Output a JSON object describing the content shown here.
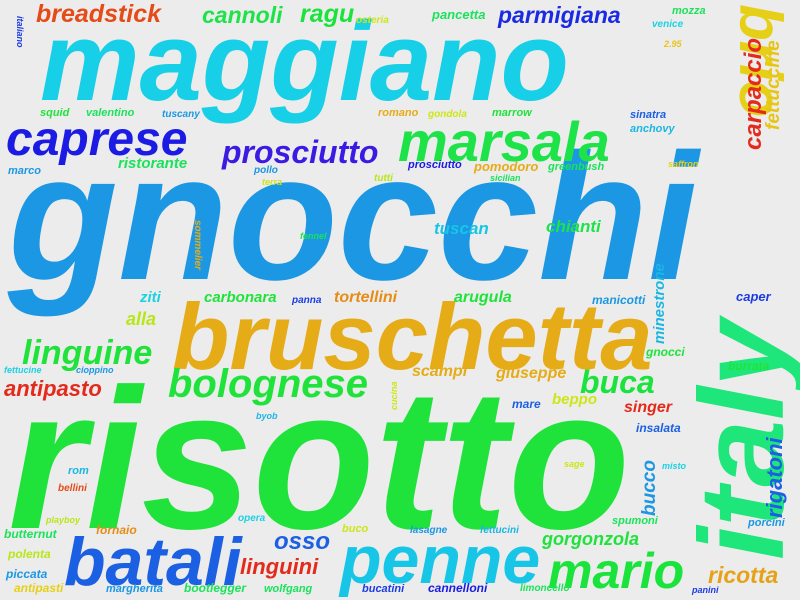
{
  "words": [
    {
      "text": "gnocchi",
      "color": "#1b97e3"
    },
    {
      "text": "risotto",
      "color": "#1fe33b"
    },
    {
      "text": "maggiano",
      "color": "#17cfe6"
    },
    {
      "text": "bruschetta",
      "color": "#e6ac17"
    },
    {
      "text": "italy",
      "color": "#1fe67a"
    },
    {
      "text": "penne",
      "color": "#17c6e6"
    },
    {
      "text": "batali",
      "color": "#1b5fe3"
    },
    {
      "text": "mario",
      "color": "#1ae33b"
    },
    {
      "text": "marsala",
      "color": "#1de349"
    },
    {
      "text": "caprese",
      "color": "#1b1be3"
    },
    {
      "text": "brio",
      "color": "#e6d017"
    },
    {
      "text": "bolognese",
      "color": "#1fe33b"
    },
    {
      "text": "linguine",
      "color": "#1fe33b"
    },
    {
      "text": "prosciutto",
      "color": "#3b1be3"
    },
    {
      "text": "buca",
      "color": "#1ae33b"
    },
    {
      "text": "carpaccio",
      "color": "#e32a1b"
    },
    {
      "text": "fettuccine",
      "color": "#e6c517"
    },
    {
      "text": "breadstick",
      "color": "#e64a17"
    },
    {
      "text": "cannoli",
      "color": "#1de349"
    },
    {
      "text": "ragu",
      "color": "#1ae33b"
    },
    {
      "text": "parmigiana",
      "color": "#1b2be3"
    },
    {
      "text": "antipasto",
      "color": "#e32a1b"
    },
    {
      "text": "osso",
      "color": "#1b5fe3"
    },
    {
      "text": "linguini",
      "color": "#e32a1b"
    },
    {
      "text": "gorgonzola",
      "color": "#1fe33b"
    },
    {
      "text": "ricotta",
      "color": "#e6a217"
    },
    {
      "text": "rigatoni",
      "color": "#1b5fe3"
    },
    {
      "text": "bucco",
      "color": "#1b97e3"
    },
    {
      "text": "minestrone",
      "color": "#1bb6e3"
    },
    {
      "text": "tortellini",
      "color": "#e68c17"
    },
    {
      "text": "carbonara",
      "color": "#1fe33b"
    },
    {
      "text": "arugula",
      "color": "#1fe33b"
    },
    {
      "text": "chianti",
      "color": "#1de349"
    },
    {
      "text": "tuscan",
      "color": "#17c6e6"
    },
    {
      "text": "scampi",
      "color": "#e6ac17"
    },
    {
      "text": "giuseppe",
      "color": "#e6ac17"
    },
    {
      "text": "singer",
      "color": "#e32a1b"
    },
    {
      "text": "beppo",
      "color": "#cde617"
    },
    {
      "text": "ristorante",
      "color": "#1ae35a"
    },
    {
      "text": "ziti",
      "color": "#1bd2e3"
    },
    {
      "text": "alla",
      "color": "#b8e617"
    },
    {
      "text": "caper",
      "color": "#1b3be3"
    },
    {
      "text": "gnocci",
      "color": "#1fe33b"
    },
    {
      "text": "burrata",
      "color": "#1fe33b"
    },
    {
      "text": "insalata",
      "color": "#1b5fe3"
    },
    {
      "text": "manicotti",
      "color": "#1b97e3"
    },
    {
      "text": "mare",
      "color": "#1b5fe3"
    },
    {
      "text": "pancetta",
      "color": "#1ae35a"
    },
    {
      "text": "pomodoro",
      "color": "#e6ac17"
    },
    {
      "text": "prosciutto",
      "color": "#1b1be3"
    },
    {
      "text": "greenbush",
      "color": "#1ae35a"
    },
    {
      "text": "sicilian",
      "color": "#1ae35a"
    },
    {
      "text": "tutti",
      "color": "#b8e617"
    },
    {
      "text": "mozza",
      "color": "#1ae35a"
    },
    {
      "text": "venice",
      "color": "#1bd2e3"
    },
    {
      "text": "2.95",
      "color": "#e6c517"
    },
    {
      "text": "italiano",
      "color": "#1b3be3"
    },
    {
      "text": "osteria",
      "color": "#cde617"
    },
    {
      "text": "squid",
      "color": "#1fe33b"
    },
    {
      "text": "valentino",
      "color": "#1ae35a"
    },
    {
      "text": "tuscany",
      "color": "#1b97e3"
    },
    {
      "text": "romano",
      "color": "#e6ac17"
    },
    {
      "text": "gondola",
      "color": "#cde617"
    },
    {
      "text": "marrow",
      "color": "#1fe33b"
    },
    {
      "text": "sinatra",
      "color": "#1b5fe3"
    },
    {
      "text": "anchovy",
      "color": "#1bb6e3"
    },
    {
      "text": "saffron",
      "color": "#e6d017"
    },
    {
      "text": "marco",
      "color": "#1b97e3"
    },
    {
      "text": "pollo",
      "color": "#1b97e3"
    },
    {
      "text": "terra",
      "color": "#cde617"
    },
    {
      "text": "sommelier",
      "color": "#e6ac17"
    },
    {
      "text": "fennel",
      "color": "#1ae35a"
    },
    {
      "text": "panna",
      "color": "#1b3be3"
    },
    {
      "text": "cucina",
      "color": "#cde617"
    },
    {
      "text": "fettucine",
      "color": "#1bd2e3"
    },
    {
      "text": "cioppino",
      "color": "#1b97e3"
    },
    {
      "text": "byob",
      "color": "#1bb6e3"
    },
    {
      "text": "rom",
      "color": "#1bb6e3"
    },
    {
      "text": "bellini",
      "color": "#e64a17"
    },
    {
      "text": "opera",
      "color": "#1bd2e3"
    },
    {
      "text": "sage",
      "color": "#cde617"
    },
    {
      "text": "misto",
      "color": "#1bd2e3"
    },
    {
      "text": "porcini",
      "color": "#1b97e3"
    },
    {
      "text": "spumoni",
      "color": "#1ae35a"
    },
    {
      "text": "playboy",
      "color": "#b8e617"
    },
    {
      "text": "butternut",
      "color": "#1ae35a"
    },
    {
      "text": "fornaio",
      "color": "#e68c17"
    },
    {
      "text": "buco",
      "color": "#cde617"
    },
    {
      "text": "lasagne",
      "color": "#1b97e3"
    },
    {
      "text": "fettucini",
      "color": "#1bb6e3"
    },
    {
      "text": "polenta",
      "color": "#b8e617"
    },
    {
      "text": "piccata",
      "color": "#1b97e3"
    },
    {
      "text": "antipasti",
      "color": "#e6d017"
    },
    {
      "text": "margherita",
      "color": "#1b97e3"
    },
    {
      "text": "bootlegger",
      "color": "#1ae35a"
    },
    {
      "text": "wolfgang",
      "color": "#1ae35a"
    },
    {
      "text": "bucatini",
      "color": "#1b3be3"
    },
    {
      "text": "cannelloni",
      "color": "#1b1be3"
    },
    {
      "text": "limoncello",
      "color": "#1ae35a"
    },
    {
      "text": "panini",
      "color": "#1b3be3"
    }
  ]
}
